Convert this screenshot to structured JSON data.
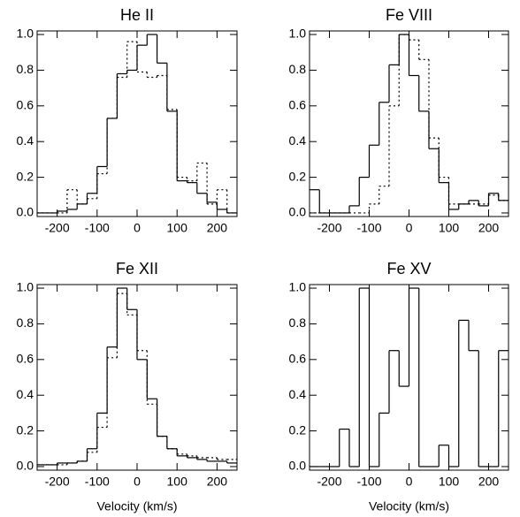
{
  "chart_data": [
    {
      "type": "histogram",
      "title": "He II",
      "bins": [
        -250,
        -225,
        -200,
        -175,
        -150,
        -125,
        -100,
        -75,
        -50,
        -25,
        0,
        25,
        50,
        75,
        100,
        125,
        150,
        175,
        200,
        225,
        250
      ],
      "series": [
        {
          "color": "#000000",
          "style": "solid",
          "values": [
            0,
            0,
            0.01,
            0.02,
            0.05,
            0.11,
            0.26,
            0.53,
            0.78,
            0.8,
            0.94,
            1.0,
            0.84,
            0.57,
            0.18,
            0.17,
            0.11,
            0.06,
            0.02,
            0
          ]
        },
        {
          "color": "#000000",
          "style": "dotted",
          "values": [
            0,
            0,
            0,
            0.13,
            0.05,
            0.08,
            0.22,
            0.53,
            0.76,
            0.96,
            0.79,
            0.76,
            0.77,
            0.58,
            0.2,
            0.18,
            0.28,
            0.05,
            0.13,
            0
          ]
        }
      ],
      "xlim": [
        -250,
        250
      ],
      "ylim": [
        -0.02,
        1.02
      ],
      "xticks": [
        -200,
        -100,
        0,
        100,
        200
      ],
      "yticks": [
        {
          "value": 0,
          "label": "0.0"
        },
        {
          "value": 0.2,
          "label": "0.2"
        },
        {
          "value": 0.4,
          "label": "0.4"
        },
        {
          "value": 0.6,
          "label": "0.6"
        },
        {
          "value": 0.8,
          "label": "0.8"
        },
        {
          "value": 1,
          "label": "1.0"
        }
      ]
    },
    {
      "type": "histogram",
      "title": "Fe VIII",
      "bins": [
        -250,
        -225,
        -200,
        -175,
        -150,
        -125,
        -100,
        -75,
        -50,
        -25,
        0,
        25,
        50,
        75,
        100,
        125,
        150,
        175,
        200,
        225,
        250
      ],
      "series": [
        {
          "color": "#000000",
          "style": "solid",
          "values": [
            0.13,
            0,
            0,
            0,
            0.04,
            0.2,
            0.38,
            0.62,
            0.83,
            1.0,
            0.77,
            0.57,
            0.36,
            0.17,
            0.02,
            0.05,
            0.07,
            0.04,
            0.11,
            0.07
          ]
        },
        {
          "color": "#000000",
          "style": "dotted",
          "values": [
            0,
            0,
            0,
            0,
            0,
            0,
            0.05,
            0.15,
            0.6,
            1.0,
            0.97,
            0.86,
            0.42,
            0.2,
            0.05,
            0.05,
            0.05,
            0.05,
            0.1,
            0.07
          ]
        }
      ],
      "xlim": [
        -250,
        250
      ],
      "ylim": [
        -0.02,
        1.02
      ],
      "xticks": [
        -200,
        -100,
        0,
        100,
        200
      ],
      "yticks": [
        {
          "value": 0,
          "label": "0.0"
        },
        {
          "value": 0.2,
          "label": "0.2"
        },
        {
          "value": 0.4,
          "label": "0.4"
        },
        {
          "value": 0.6,
          "label": "0.6"
        },
        {
          "value": 0.8,
          "label": "0.8"
        },
        {
          "value": 1,
          "label": "1.0"
        }
      ]
    },
    {
      "type": "histogram",
      "title": "Fe XII",
      "xlabel": "Velocity (km/s)",
      "bins": [
        -250,
        -225,
        -200,
        -175,
        -150,
        -125,
        -100,
        -75,
        -50,
        -25,
        0,
        25,
        50,
        75,
        100,
        125,
        150,
        175,
        200,
        225,
        250
      ],
      "series": [
        {
          "color": "#000000",
          "style": "solid",
          "values": [
            0.01,
            0.01,
            0.02,
            0.02,
            0.03,
            0.1,
            0.3,
            0.67,
            1.0,
            0.88,
            0.6,
            0.38,
            0.17,
            0.1,
            0.06,
            0.05,
            0.04,
            0.03,
            0.03,
            0.02
          ]
        },
        {
          "color": "#000000",
          "style": "dotted",
          "values": [
            0.01,
            0.01,
            0.01,
            0.02,
            0.03,
            0.08,
            0.22,
            0.61,
            0.97,
            0.85,
            0.65,
            0.35,
            0.17,
            0.1,
            0.07,
            0.06,
            0.05,
            0.05,
            0.04,
            0.04
          ]
        }
      ],
      "xlim": [
        -250,
        250
      ],
      "ylim": [
        -0.02,
        1.02
      ],
      "xticks": [
        -200,
        -100,
        0,
        100,
        200
      ],
      "yticks": [
        {
          "value": 0,
          "label": "0.0"
        },
        {
          "value": 0.2,
          "label": "0.2"
        },
        {
          "value": 0.4,
          "label": "0.4"
        },
        {
          "value": 0.6,
          "label": "0.6"
        },
        {
          "value": 0.8,
          "label": "0.8"
        },
        {
          "value": 1,
          "label": "1.0"
        }
      ]
    },
    {
      "type": "histogram",
      "title": "Fe XV",
      "xlabel": "Velocity (km/s)",
      "bins": [
        -250,
        -225,
        -200,
        -175,
        -150,
        -125,
        -100,
        -75,
        -50,
        -25,
        0,
        25,
        50,
        75,
        100,
        125,
        150,
        175,
        200,
        225,
        250
      ],
      "series": [
        {
          "color": "#000000",
          "style": "solid",
          "values": [
            0,
            0,
            0,
            0.21,
            0,
            1.0,
            0,
            0.3,
            0.65,
            0.45,
            1.0,
            0,
            0,
            0.12,
            0,
            0.82,
            0.65,
            0,
            0,
            0.65
          ]
        }
      ],
      "xlim": [
        -250,
        250
      ],
      "ylim": [
        -0.02,
        1.02
      ],
      "xticks": [
        -200,
        -100,
        0,
        100,
        200
      ],
      "yticks": [
        {
          "value": 0,
          "label": "0.0"
        },
        {
          "value": 0.2,
          "label": "0.2"
        },
        {
          "value": 0.4,
          "label": "0.4"
        },
        {
          "value": 0.6,
          "label": "0.6"
        },
        {
          "value": 0.8,
          "label": "0.8"
        },
        {
          "value": 1,
          "label": "1.0"
        }
      ]
    }
  ]
}
